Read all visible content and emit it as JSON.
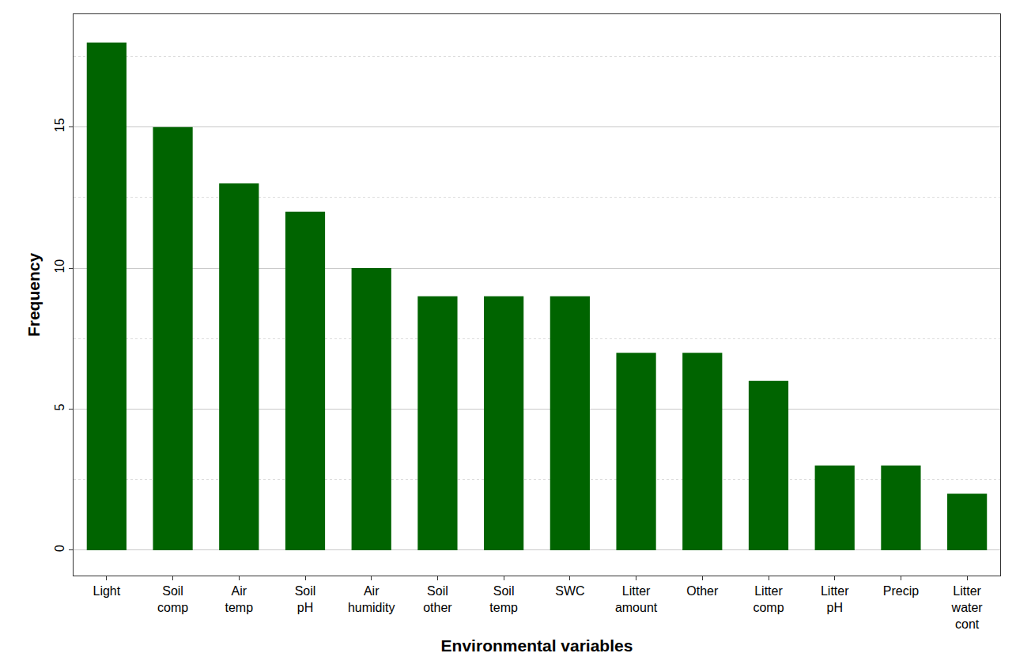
{
  "chart_data": {
    "type": "bar",
    "x_label": "Environmental variables",
    "y_label": "Frequency",
    "categories": [
      "Light",
      "Soil\ncomp",
      "Air\ntemp",
      "Soil\npH",
      "Air\nhumidity",
      "Soil\nother",
      "Soil\ntemp",
      "SWC",
      "Litter\namount",
      "Other",
      "Litter\ncomp",
      "Litter\npH",
      "Precip",
      "Litter\nwater\ncont"
    ],
    "values": [
      18,
      15,
      13,
      12,
      10,
      9,
      9,
      9,
      7,
      7,
      6,
      3,
      3,
      2
    ],
    "color": "#006400",
    "ylim": [
      -0.9,
      19.0
    ],
    "yticks": [
      0,
      5,
      10,
      15
    ],
    "grid": true
  }
}
